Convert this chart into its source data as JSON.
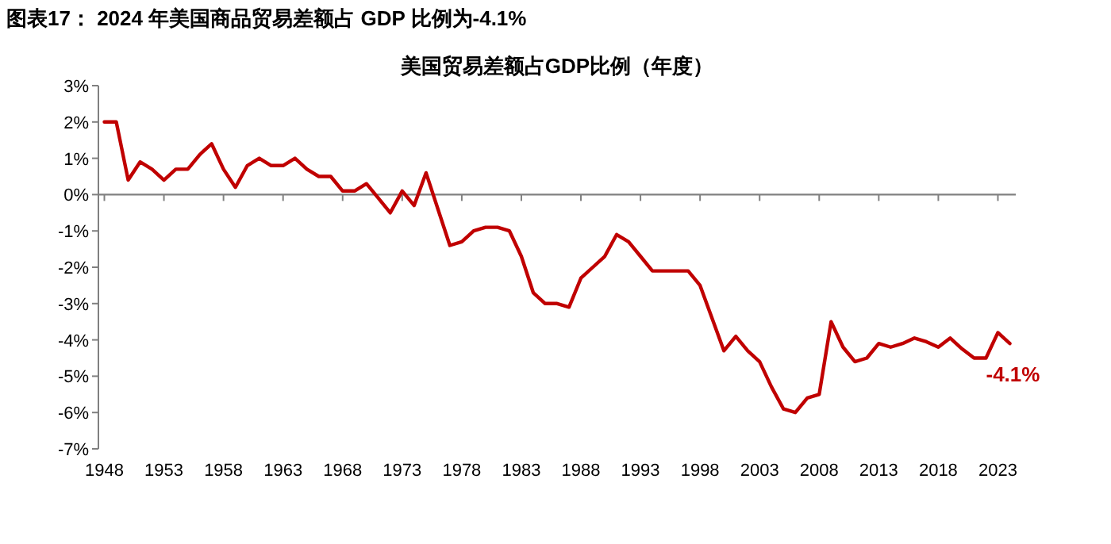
{
  "chart_data": {
    "type": "line",
    "title": "图表17：  2024 年美国商品贸易差额占 GDP 比例为-4.1%",
    "subtitle": "美国贸易差额占GDP比例（年度）",
    "x": [
      1948,
      1949,
      1950,
      1951,
      1952,
      1953,
      1954,
      1955,
      1956,
      1957,
      1958,
      1959,
      1960,
      1961,
      1962,
      1963,
      1964,
      1965,
      1966,
      1967,
      1968,
      1969,
      1970,
      1971,
      1972,
      1973,
      1974,
      1975,
      1976,
      1977,
      1978,
      1979,
      1980,
      1981,
      1982,
      1983,
      1984,
      1985,
      1986,
      1987,
      1988,
      1989,
      1990,
      1991,
      1992,
      1993,
      1994,
      1995,
      1996,
      1997,
      1998,
      1999,
      2000,
      2001,
      2002,
      2003,
      2004,
      2005,
      2006,
      2007,
      2008,
      2009,
      2010,
      2011,
      2012,
      2013,
      2014,
      2015,
      2016,
      2017,
      2018,
      2019,
      2020,
      2021,
      2022,
      2023,
      2024
    ],
    "series": [
      {
        "color": "#c00000",
        "values": [
          2.0,
          2.0,
          0.4,
          0.9,
          0.7,
          0.4,
          0.7,
          0.7,
          1.1,
          1.4,
          0.7,
          0.2,
          0.8,
          1.0,
          0.8,
          0.8,
          1.0,
          0.7,
          0.5,
          0.5,
          0.1,
          0.1,
          0.3,
          -0.1,
          -0.5,
          0.1,
          -0.3,
          0.6,
          -0.4,
          -1.4,
          -1.3,
          -1.0,
          -0.9,
          -0.9,
          -1.0,
          -1.7,
          -2.7,
          -3.0,
          -3.0,
          -3.1,
          -2.3,
          -2.0,
          -1.7,
          -1.1,
          -1.3,
          -1.7,
          -2.1,
          -2.1,
          -2.1,
          -2.1,
          -2.5,
          -3.4,
          -4.3,
          -3.9,
          -4.3,
          -4.6,
          -5.3,
          -5.9,
          -6.0,
          -5.6,
          -5.5,
          -3.5,
          -4.2,
          -4.6,
          -4.5,
          -4.1,
          -4.2,
          -4.1,
          -3.95,
          -4.05,
          -4.2,
          -3.95,
          -4.25,
          -4.5,
          -4.5,
          -3.8,
          -4.1
        ]
      }
    ],
    "xlim": [
      1947.5,
      2024.5
    ],
    "xticks": [
      1948,
      1953,
      1958,
      1963,
      1968,
      1973,
      1978,
      1983,
      1988,
      1993,
      1998,
      2003,
      2008,
      2013,
      2018,
      2023
    ],
    "ylim": [
      -7,
      3
    ],
    "yticks": [
      {
        "value": 3,
        "label": "3%"
      },
      {
        "value": 2,
        "label": "2%"
      },
      {
        "value": 1,
        "label": "1%"
      },
      {
        "value": 0,
        "label": "0%"
      },
      {
        "value": -1,
        "label": "-1%"
      },
      {
        "value": -2,
        "label": "-2%"
      },
      {
        "value": -3,
        "label": "-3%"
      },
      {
        "value": -4,
        "label": "-4%"
      },
      {
        "value": -5,
        "label": "-5%"
      },
      {
        "value": -6,
        "label": "-6%"
      },
      {
        "value": -7,
        "label": "-7%"
      }
    ],
    "annotations": [
      {
        "text": "-4.1%",
        "x": 2024,
        "y": -4.1
      }
    ]
  }
}
